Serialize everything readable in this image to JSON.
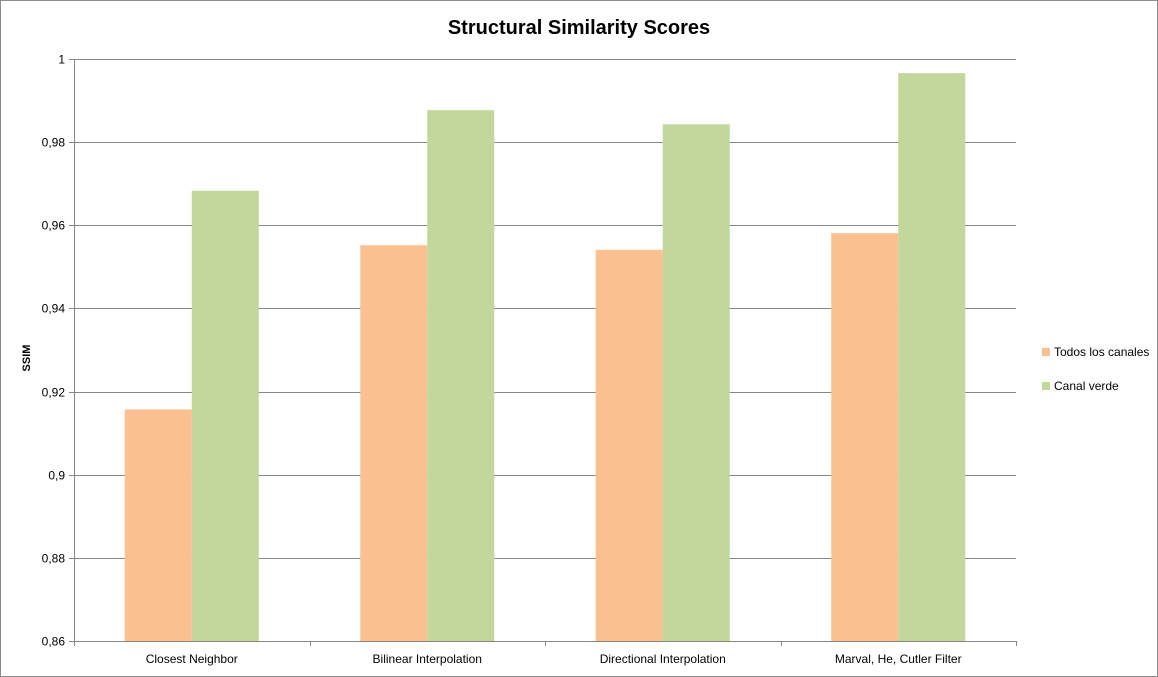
{
  "chart_data": {
    "type": "bar",
    "title": "Structural Similarity Scores",
    "xlabel": "",
    "ylabel": "SSIM",
    "categories": [
      "Closest Neighbor",
      "Bilinear Interpolation",
      "Directional Interpolation",
      "Marval, He, Cutler Filter"
    ],
    "series": [
      {
        "name": "Todos los canales",
        "color": "#fac090",
        "values": [
          0.9157,
          0.9552,
          0.9541,
          0.9581
        ]
      },
      {
        "name": "Canal verde",
        "color": "#c3d69b",
        "values": [
          0.9683,
          0.9877,
          0.9843,
          0.9966
        ]
      }
    ],
    "ylim": [
      0.86,
      1.0
    ],
    "yticks": [
      0.86,
      0.88,
      0.9,
      0.92,
      0.94,
      0.96,
      0.98,
      1.0
    ],
    "ytick_labels": [
      "0,86",
      "0,88",
      "0,9",
      "0,92",
      "0,94",
      "0,96",
      "0,98",
      "1"
    ],
    "grid": true,
    "legend_position": "right",
    "gridline_color": "#868686"
  }
}
